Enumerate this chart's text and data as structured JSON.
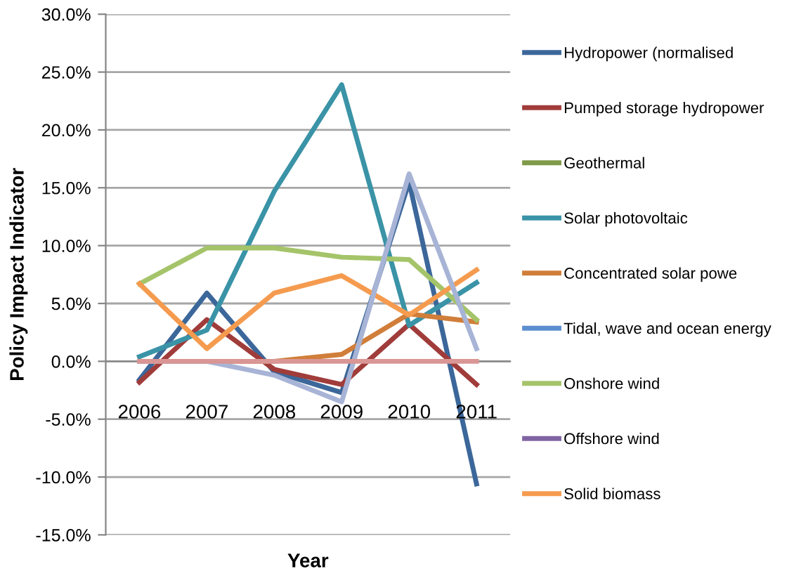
{
  "chart_data": {
    "type": "line",
    "xlabel": "Year",
    "ylabel": "Policy Impact Indicator",
    "categories": [
      "2006",
      "2007",
      "2008",
      "2009",
      "2010",
      "2011"
    ],
    "series": [
      {
        "name": "Hydropower (normalised",
        "color": "#3c679a",
        "values": [
          -1.6,
          5.9,
          -0.9,
          -2.7,
          15.5,
          -10.6
        ]
      },
      {
        "name": "Pumped storage hydropower",
        "color": "#a03c3a",
        "values": [
          -1.8,
          3.6,
          -0.7,
          -2.0,
          3.2,
          -2.0
        ]
      },
      {
        "name": "Geothermal",
        "color": "#7f9a48",
        "values": [
          null,
          null,
          null,
          null,
          null,
          null
        ]
      },
      {
        "name": "Solar photovoltaic",
        "color": "#3a93a6",
        "values": [
          0.4,
          2.7,
          14.7,
          23.9,
          3.1,
          6.8
        ]
      },
      {
        "name": "Concentrated solar powe",
        "color": "#d07e3a",
        "values": [
          0,
          0,
          0,
          0.6,
          4.1,
          3.4
        ]
      },
      {
        "name": "Tidal, wave and ocean energy",
        "color": "#5d8fd0",
        "values": [
          null,
          null,
          null,
          null,
          null,
          null
        ]
      },
      {
        "name": "Onshore wind",
        "color": "#a5c46a",
        "values": [
          6.7,
          9.8,
          9.8,
          9.0,
          8.8,
          3.6
        ]
      },
      {
        "name": "Offshore wind",
        "color": "#8064a2",
        "values": [
          null,
          null,
          null,
          null,
          null,
          null
        ]
      },
      {
        "name": "Solid biomass",
        "color": "#f59b4f",
        "values": [
          6.7,
          1.1,
          5.9,
          7.4,
          4.0,
          7.9
        ]
      },
      {
        "color": "#a8b4d6",
        "values": [
          0,
          0,
          -1.2,
          -3.5,
          16.2,
          1.1
        ]
      },
      {
        "color": "#d99694",
        "values": [
          0,
          0,
          0,
          0,
          0,
          0
        ]
      }
    ],
    "ylim": [
      -15,
      30
    ],
    "yticks": [
      {
        "value": -15,
        "label": "-15.0%"
      },
      {
        "value": -10,
        "label": "-10.0%"
      },
      {
        "value": -5,
        "label": "-5.0%"
      },
      {
        "value": 0,
        "label": "0.0%"
      },
      {
        "value": 5,
        "label": "5.0%"
      },
      {
        "value": 10,
        "label": "10.0%"
      },
      {
        "value": 15,
        "label": "15.0%"
      },
      {
        "value": 20,
        "label": "20.0%"
      },
      {
        "value": 25,
        "label": "25.0%"
      },
      {
        "value": 30,
        "label": "30.0%"
      }
    ],
    "grid": "y",
    "legend": "right",
    "marker": "none",
    "line_style": "solid"
  }
}
